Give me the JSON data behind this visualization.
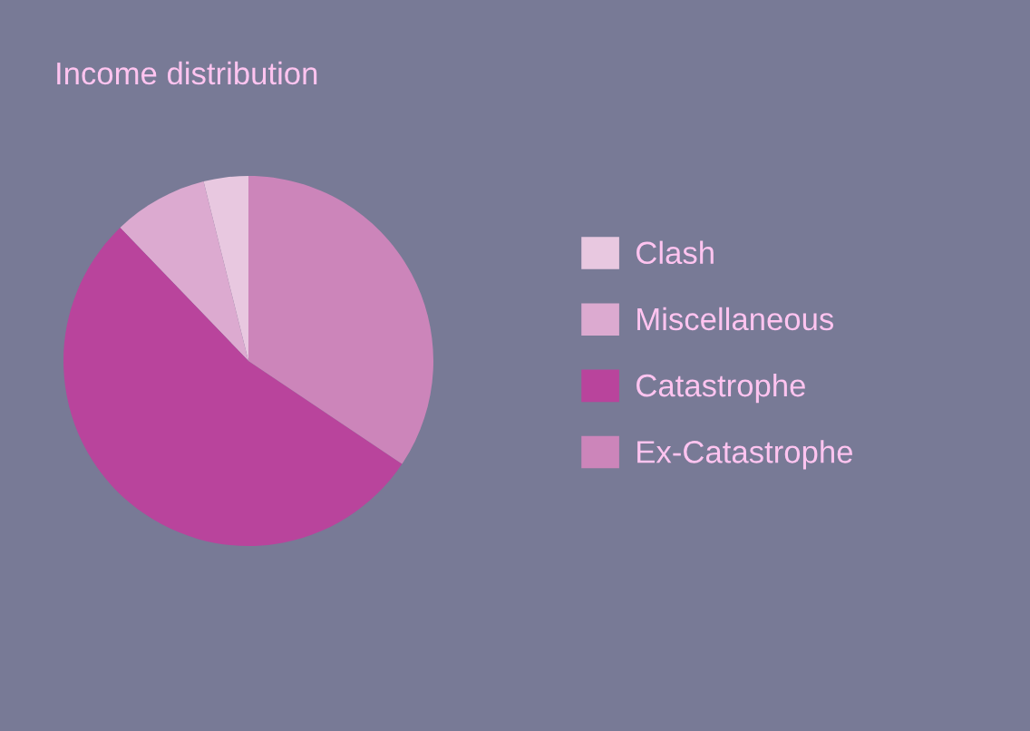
{
  "chart_data": {
    "type": "pie",
    "title": "Income distribution",
    "categories": [
      "Clash",
      "Miscellaneous",
      "Catastrophe",
      "Ex-Catastrophe"
    ],
    "values": [
      3.9,
      8.3,
      53.4,
      34.4
    ],
    "colors": [
      "#e8c8e0",
      "#dcaad0",
      "#b9449c",
      "#cc85ba"
    ],
    "legend": "right"
  }
}
